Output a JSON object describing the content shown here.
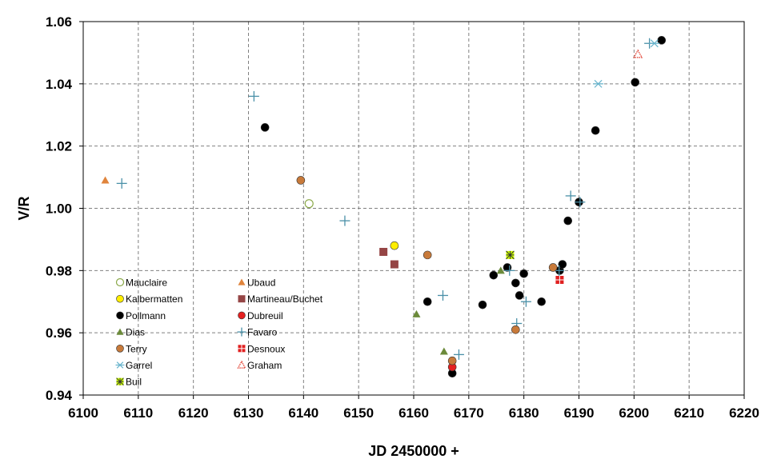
{
  "chart_data": {
    "type": "scatter",
    "xlabel": "JD 2450000 +",
    "ylabel": "V/R",
    "xlim": [
      6100,
      6220
    ],
    "ylim": [
      0.94,
      1.06
    ],
    "xticks": [
      6100,
      6110,
      6120,
      6130,
      6140,
      6150,
      6160,
      6170,
      6180,
      6190,
      6200,
      6210,
      6220
    ],
    "yticks": [
      0.94,
      0.96,
      0.98,
      1.0,
      1.02,
      1.04,
      1.06
    ],
    "ytick_labels": [
      "0.94",
      "0.96",
      "0.98",
      "1.00",
      "1.02",
      "1.04",
      "1.06"
    ],
    "grid": true,
    "legend_position": "lower-left",
    "series": [
      {
        "name": "Mauclaire",
        "marker": "circle-open",
        "color": "#8aa848",
        "x": [
          6141
        ],
        "y": [
          1.0015
        ]
      },
      {
        "name": "Ubaud",
        "marker": "triangle",
        "color": "#e0843c",
        "x": [
          6104
        ],
        "y": [
          1.009
        ]
      },
      {
        "name": "Kalbermatten",
        "marker": "circle",
        "color": "#ffee00",
        "x": [
          6156.5
        ],
        "y": [
          0.988
        ]
      },
      {
        "name": "Martineau/Buchet",
        "marker": "square",
        "color": "#954545",
        "x": [
          6154.5,
          6156.5
        ],
        "y": [
          0.986,
          0.982
        ]
      },
      {
        "name": "Pollmann",
        "marker": "circle",
        "color": "#000000",
        "x": [
          6133,
          6162.5,
          6167,
          6172.5,
          6174.5,
          6177,
          6178.5,
          6179.2,
          6180,
          6183.2,
          6186.5,
          6187,
          6188,
          6190,
          6193,
          6200.2,
          6205
        ],
        "y": [
          1.026,
          0.97,
          0.947,
          0.969,
          0.9785,
          0.981,
          0.976,
          0.972,
          0.979,
          0.97,
          0.98,
          0.982,
          0.996,
          1.002,
          1.025,
          1.0405,
          1.054
        ]
      },
      {
        "name": "Dubreuil",
        "marker": "circle",
        "color": "#e52020",
        "x": [
          6167
        ],
        "y": [
          0.949
        ]
      },
      {
        "name": "Dias",
        "marker": "triangle",
        "color": "#6b8a3a",
        "x": [
          6160.5,
          6165.5,
          6175.8
        ],
        "y": [
          0.966,
          0.954,
          0.98
        ]
      },
      {
        "name": "Favaro",
        "marker": "plus",
        "color": "#4a90a8",
        "x": [
          6107,
          6131,
          6147.5,
          6165.3,
          6168.2,
          6177.4,
          6178.7,
          6180.4,
          6186.4,
          6188.5,
          6190.2,
          6202.8
        ],
        "y": [
          1.008,
          1.036,
          0.996,
          0.972,
          0.953,
          0.98,
          0.963,
          0.97,
          0.98,
          1.004,
          1.002,
          1.053
        ]
      },
      {
        "name": "Terry",
        "marker": "circle",
        "color": "#c87a3a",
        "x": [
          6139.5,
          6162.5,
          6167,
          6178.5,
          6185.3
        ],
        "y": [
          1.009,
          0.985,
          0.951,
          0.961,
          0.981
        ]
      },
      {
        "name": "Desnoux",
        "marker": "square-cross",
        "color": "#e02020",
        "x": [
          6186.5
        ],
        "y": [
          0.977
        ]
      },
      {
        "name": "Garrel",
        "marker": "asterisk",
        "color": "#66b3cc",
        "x": [
          6193.5,
          6203.7
        ],
        "y": [
          1.04,
          1.053
        ]
      },
      {
        "name": "Graham",
        "marker": "triangle-open",
        "color": "#e03020",
        "x": [
          6200.7
        ],
        "y": [
          1.0495
        ]
      },
      {
        "name": "Buil",
        "marker": "asterisk-box",
        "color": "#ccff00",
        "x": [
          6177.5
        ],
        "y": [
          0.985
        ]
      }
    ]
  }
}
